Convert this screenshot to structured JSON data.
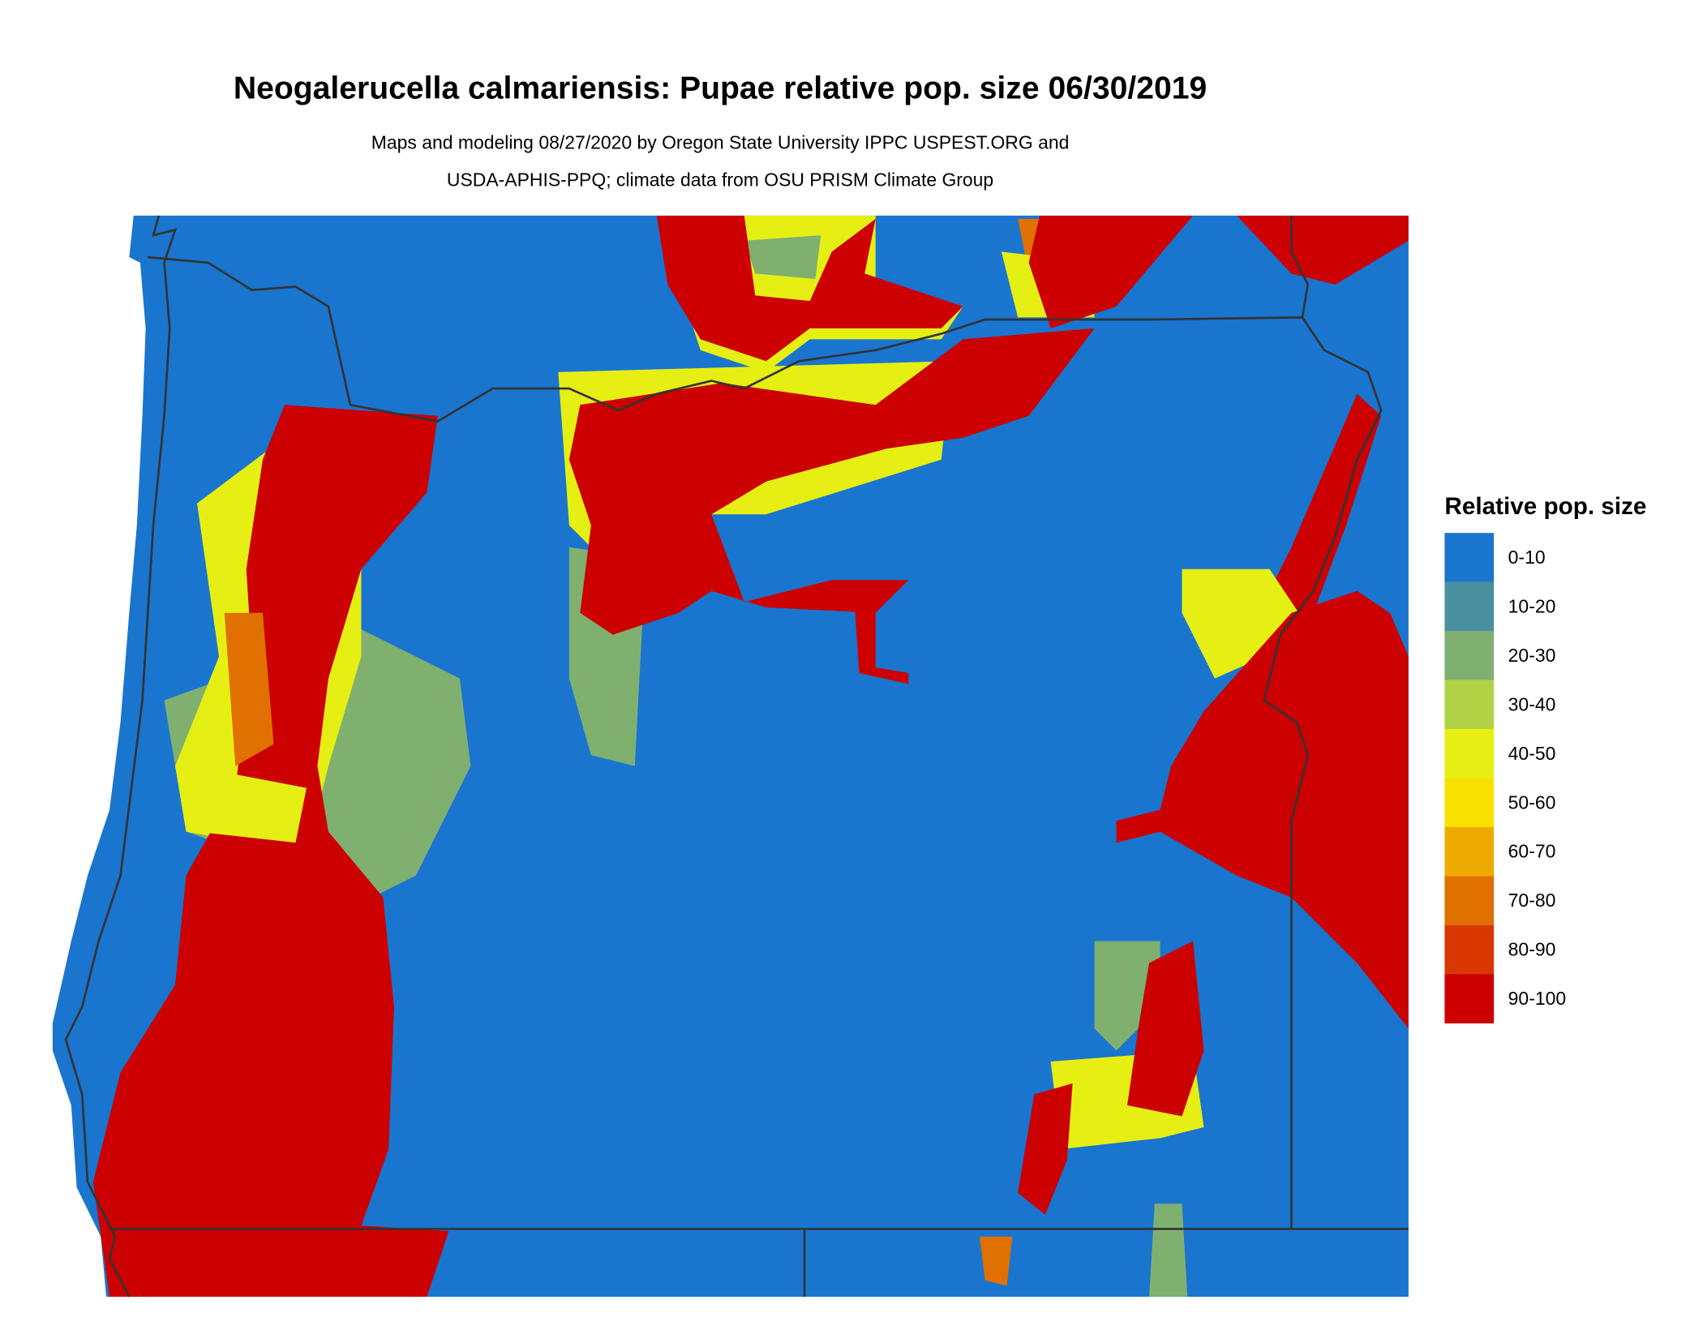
{
  "title": "Neogalerucella calmariensis: Pupae relative pop. size 06/30/2019",
  "subtitle_line1": "Maps and modeling 08/27/2020 by Oregon State University IPPC USPEST.ORG and",
  "subtitle_line2": "USDA-APHIS-PPQ; climate data from OSU PRISM Climate Group",
  "legend": {
    "title": "Relative pop. size",
    "items": [
      {
        "label": "0-10",
        "color": "#1a75cf"
      },
      {
        "label": "10-20",
        "color": "#4a90a0"
      },
      {
        "label": "20-30",
        "color": "#7fb070"
      },
      {
        "label": "30-40",
        "color": "#b2d145"
      },
      {
        "label": "40-50",
        "color": "#e6ef14"
      },
      {
        "label": "50-60",
        "color": "#f8e000"
      },
      {
        "label": "60-70",
        "color": "#eeaa00"
      },
      {
        "label": "70-80",
        "color": "#e07000"
      },
      {
        "label": "80-90",
        "color": "#d83800"
      },
      {
        "label": "90-100",
        "color": "#cc0000"
      }
    ]
  }
}
